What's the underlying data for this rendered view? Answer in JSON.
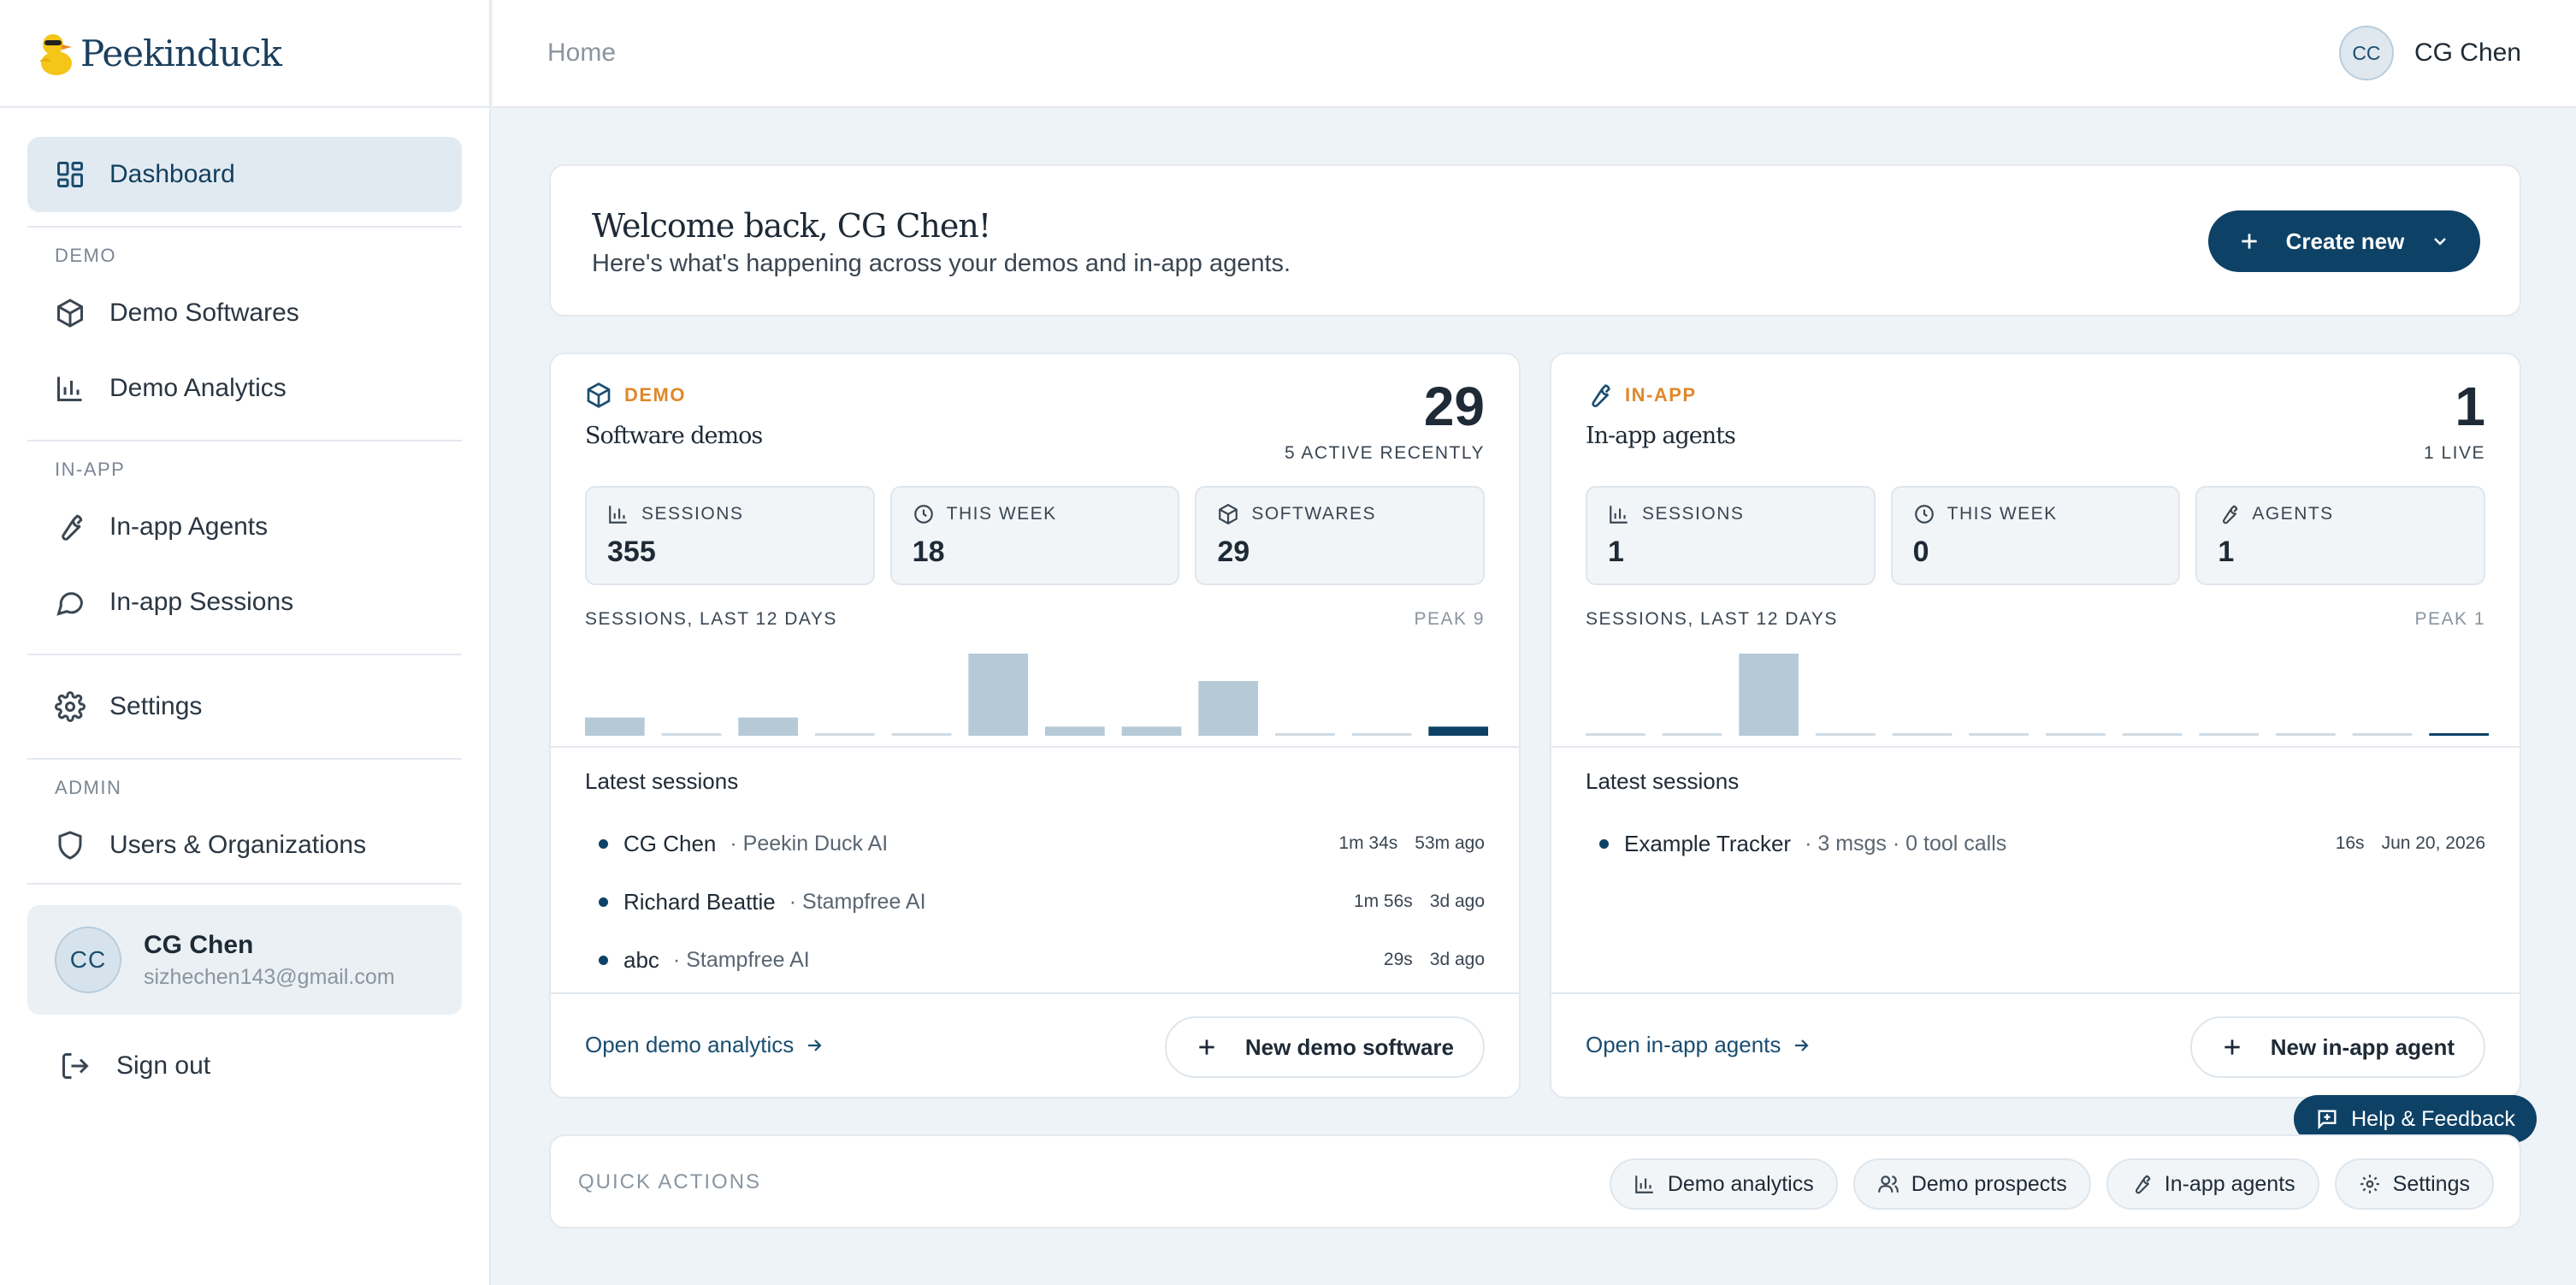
{
  "brand": {
    "name": "Peekinduck"
  },
  "sidebar": {
    "dashboard": "Dashboard",
    "sections": {
      "demo": "DEMO",
      "inapp": "IN-APP",
      "admin": "ADMIN"
    },
    "demo_softwares": "Demo Softwares",
    "demo_analytics": "Demo Analytics",
    "inapp_agents": "In-app Agents",
    "inapp_sessions": "In-app Sessions",
    "settings": "Settings",
    "users_orgs": "Users & Organizations",
    "user": {
      "initials": "CC",
      "name": "CG Chen",
      "email": "sizhechen143@gmail.com"
    },
    "sign_out": "Sign out"
  },
  "topbar": {
    "breadcrumb": "Home",
    "user_initials": "CC",
    "user_name": "CG Chen"
  },
  "welcome": {
    "title": "Welcome back, CG Chen!",
    "subtitle": "Here's what's happening across your demos and in-app agents.",
    "create_label": "Create new"
  },
  "demo_panel": {
    "tag": "DEMO",
    "subtitle": "Software demos",
    "count": "29",
    "count_sub": "5 ACTIVE RECENTLY",
    "stats": [
      {
        "label": "SESSIONS",
        "value": "355",
        "icon": "bar-chart-icon"
      },
      {
        "label": "THIS WEEK",
        "value": "18",
        "icon": "clock-icon"
      },
      {
        "label": "SOFTWARES",
        "value": "29",
        "icon": "box-icon"
      }
    ],
    "spark_label": "SESSIONS, LAST 12 DAYS",
    "peak_label": "PEAK  9",
    "spark_values": [
      2,
      0,
      2,
      0,
      0,
      9,
      1,
      1,
      6,
      0,
      0,
      1
    ],
    "latest_title": "Latest sessions",
    "sessions": [
      {
        "name": "CG Chen",
        "org": "· Peekin Duck AI",
        "duration": "1m 34s",
        "when": "53m ago"
      },
      {
        "name": "Richard Beattie",
        "org": "· Stampfree AI",
        "duration": "1m 56s",
        "when": "3d ago"
      },
      {
        "name": "abc",
        "org": "· Stampfree AI",
        "duration": "29s",
        "when": "3d ago"
      }
    ],
    "foot_link": "Open demo analytics",
    "foot_button": "New demo software"
  },
  "inapp_panel": {
    "tag": "IN-APP",
    "subtitle": "In-app agents",
    "count": "1",
    "count_sub": "1 LIVE",
    "stats": [
      {
        "label": "SESSIONS",
        "value": "1",
        "icon": "bar-chart-icon"
      },
      {
        "label": "THIS WEEK",
        "value": "0",
        "icon": "clock-icon"
      },
      {
        "label": "AGENTS",
        "value": "1",
        "icon": "wrench-icon"
      }
    ],
    "spark_label": "SESSIONS, LAST 12 DAYS",
    "peak_label": "PEAK  1",
    "spark_values": [
      0,
      0,
      1,
      0,
      0,
      0,
      0,
      0,
      0,
      0,
      0,
      0
    ],
    "latest_title": "Latest sessions",
    "sessions": [
      {
        "name": "Example Tracker",
        "org": "· 3 msgs · 0 tool calls",
        "duration": "16s",
        "when": "Jun 20, 2026"
      }
    ],
    "foot_link": "Open in-app agents",
    "foot_button": "New in-app agent"
  },
  "help_label": "Help & Feedback",
  "quick": {
    "label": "QUICK ACTIONS",
    "actions": [
      {
        "label": "Demo analytics",
        "icon": "bar-chart-icon"
      },
      {
        "label": "Demo prospects",
        "icon": "users-icon"
      },
      {
        "label": "In-app agents",
        "icon": "wrench-icon"
      },
      {
        "label": "Settings",
        "icon": "gear-icon"
      }
    ]
  },
  "colors": {
    "primary": "#0e4166",
    "accent": "#e0882a",
    "bar": "#b6c9d6",
    "bar_active": "#0e4166"
  }
}
